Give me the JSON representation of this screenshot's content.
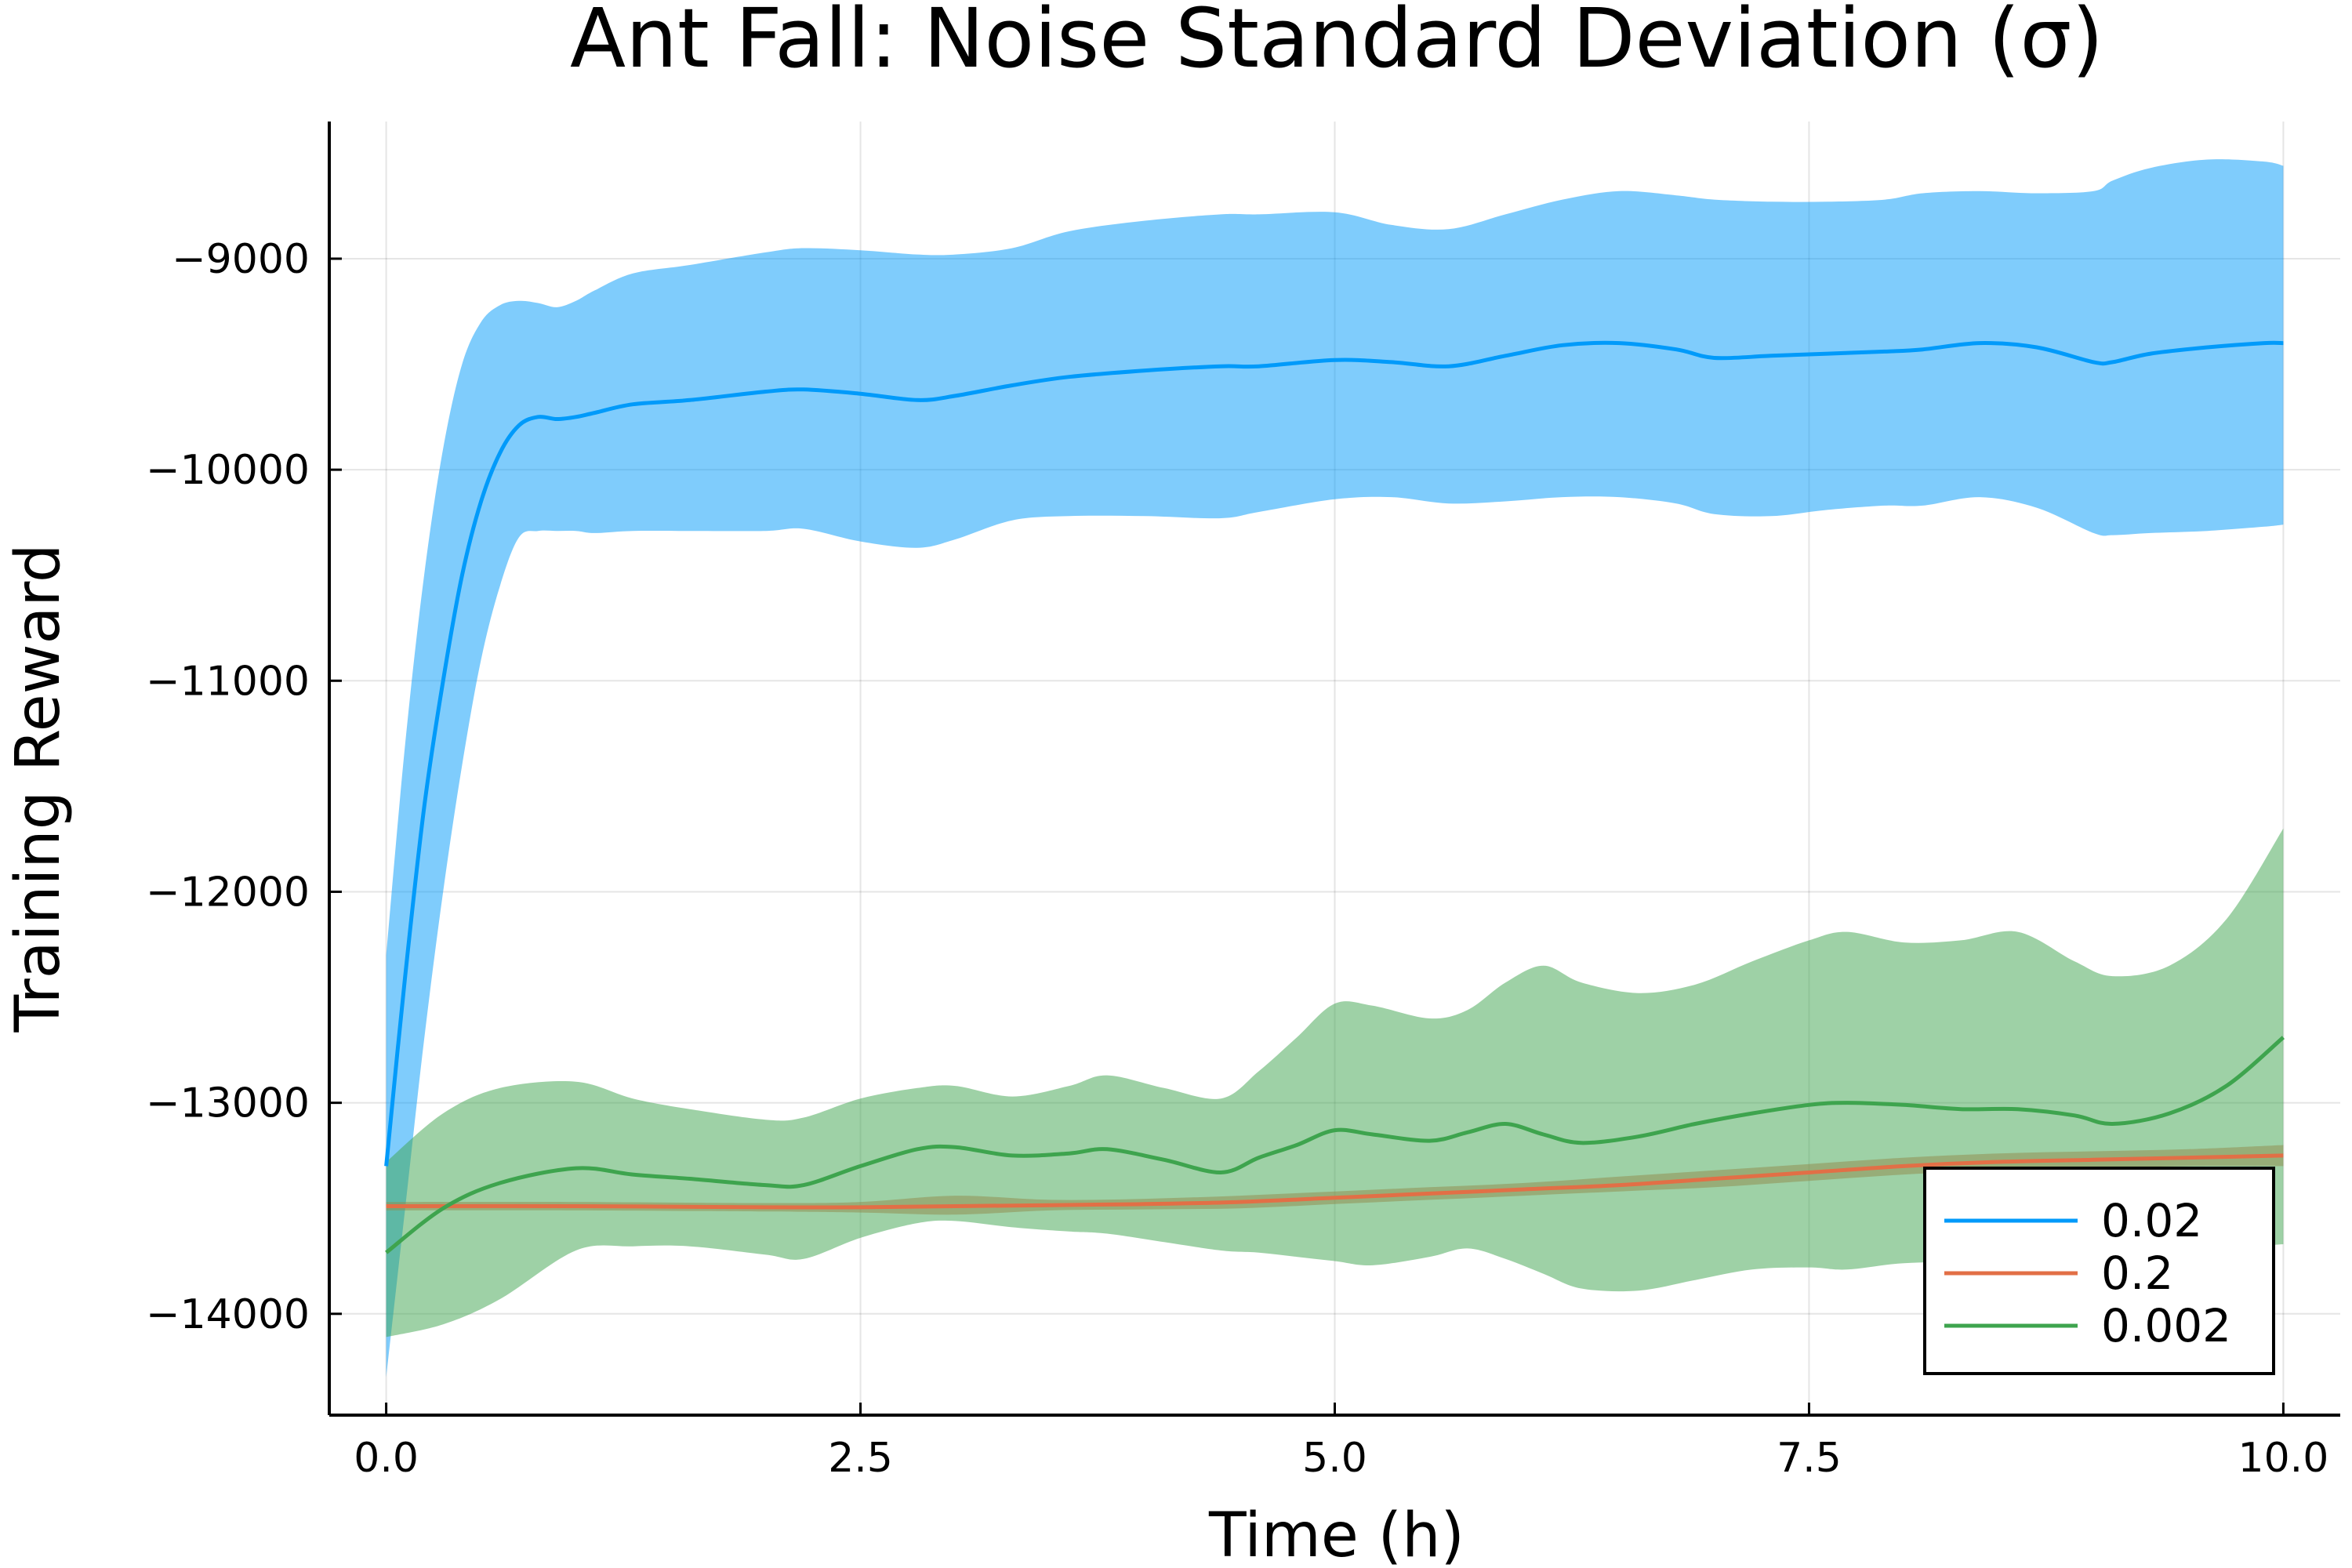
{
  "chart_data": {
    "type": "line",
    "title": "Ant Fall: Noise Standard Deviation (σ)",
    "xlabel": "Time (h)",
    "ylabel": "Training Reward",
    "xlim": [
      -0.3,
      10.3
    ],
    "ylim": [
      -14480,
      -8350
    ],
    "xticks": [
      0.0,
      2.5,
      5.0,
      7.5,
      10.0
    ],
    "xtick_labels": [
      "0.0",
      "2.5",
      "5.0",
      "7.5",
      "10.0"
    ],
    "yticks": [
      -9000,
      -10000,
      -11000,
      -12000,
      -13000,
      -14000
    ],
    "ytick_labels": [
      "−9000",
      "−10000",
      "−11000",
      "−12000",
      "−13000",
      "−14000"
    ],
    "grid": true,
    "legend_position": "bottom-right",
    "series": [
      {
        "name": "0.02",
        "color": "#009AFA",
        "band_color": "#7FC9F9",
        "x": [
          0.0,
          0.1,
          0.2,
          0.3,
          0.4,
          0.5,
          0.6,
          0.7,
          0.8,
          0.9,
          1.0,
          1.1,
          1.3,
          1.6,
          2.0,
          2.2,
          2.5,
          2.8,
          3.0,
          3.3,
          3.6,
          4.0,
          4.4,
          4.6,
          5.0,
          5.3,
          5.6,
          5.9,
          6.2,
          6.5,
          6.8,
          7.0,
          7.3,
          7.6,
          7.9,
          8.1,
          8.4,
          8.7,
          9.0,
          9.1,
          9.3,
          9.6,
          9.9,
          10.0
        ],
        "values": [
          -13300,
          -12400,
          -11600,
          -11000,
          -10500,
          -10150,
          -9920,
          -9790,
          -9750,
          -9760,
          -9750,
          -9730,
          -9690,
          -9670,
          -9630,
          -9620,
          -9640,
          -9670,
          -9650,
          -9600,
          -9560,
          -9530,
          -9510,
          -9510,
          -9480,
          -9490,
          -9510,
          -9460,
          -9410,
          -9400,
          -9430,
          -9470,
          -9460,
          -9450,
          -9440,
          -9430,
          -9400,
          -9420,
          -9490,
          -9490,
          -9450,
          -9420,
          -9400,
          -9400
        ],
        "upper": [
          -12300,
          -11300,
          -10500,
          -9900,
          -9500,
          -9300,
          -9220,
          -9200,
          -9210,
          -9230,
          -9200,
          -9150,
          -9070,
          -9030,
          -8970,
          -8950,
          -8960,
          -8980,
          -8980,
          -8950,
          -8870,
          -8820,
          -8790,
          -8790,
          -8780,
          -8840,
          -8860,
          -8790,
          -8720,
          -8680,
          -8700,
          -8720,
          -8730,
          -8730,
          -8720,
          -8690,
          -8680,
          -8690,
          -8680,
          -8630,
          -8570,
          -8530,
          -8540,
          -8560
        ],
        "lower": [
          -14300,
          -13500,
          -12700,
          -12000,
          -11400,
          -10900,
          -10550,
          -10320,
          -10290,
          -10290,
          -10290,
          -10300,
          -10290,
          -10290,
          -10290,
          -10280,
          -10340,
          -10370,
          -10330,
          -10240,
          -10220,
          -10220,
          -10230,
          -10200,
          -10140,
          -10130,
          -10160,
          -10150,
          -10130,
          -10130,
          -10160,
          -10210,
          -10220,
          -10190,
          -10170,
          -10170,
          -10130,
          -10180,
          -10300,
          -10310,
          -10300,
          -10290,
          -10270,
          -10260
        ]
      },
      {
        "name": "0.2",
        "color": "#E26F46",
        "band_color": "#F0B7A2",
        "x": [
          0.0,
          1.0,
          2.0,
          2.5,
          3.0,
          3.5,
          4.0,
          4.5,
          5.0,
          5.5,
          6.0,
          6.5,
          7.0,
          7.5,
          8.0,
          8.5,
          9.0,
          9.5,
          10.0
        ],
        "values": [
          -13490,
          -13490,
          -13495,
          -13495,
          -13490,
          -13485,
          -13480,
          -13470,
          -13450,
          -13430,
          -13410,
          -13390,
          -13360,
          -13330,
          -13300,
          -13280,
          -13270,
          -13260,
          -13250
        ],
        "upper": [
          -13470,
          -13470,
          -13475,
          -13470,
          -13440,
          -13460,
          -13455,
          -13440,
          -13420,
          -13400,
          -13380,
          -13350,
          -13320,
          -13290,
          -13260,
          -13240,
          -13230,
          -13220,
          -13200
        ],
        "lower": [
          -13510,
          -13510,
          -13515,
          -13520,
          -13530,
          -13510,
          -13505,
          -13500,
          -13480,
          -13460,
          -13440,
          -13420,
          -13400,
          -13370,
          -13340,
          -13320,
          -13310,
          -13300,
          -13300
        ]
      },
      {
        "name": "0.002",
        "color": "#3EA44E",
        "band_color": "#9ED1A6",
        "x": [
          0.0,
          0.3,
          0.6,
          1.0,
          1.3,
          1.6,
          2.0,
          2.2,
          2.5,
          2.8,
          3.0,
          3.3,
          3.6,
          3.8,
          4.1,
          4.4,
          4.6,
          4.8,
          5.0,
          5.2,
          5.5,
          5.7,
          5.9,
          6.1,
          6.3,
          6.6,
          6.9,
          7.2,
          7.5,
          7.7,
          8.0,
          8.3,
          8.6,
          8.9,
          9.1,
          9.4,
          9.7,
          10.0
        ],
        "values": [
          -13710,
          -13500,
          -13380,
          -13310,
          -13340,
          -13360,
          -13390,
          -13390,
          -13300,
          -13220,
          -13210,
          -13250,
          -13240,
          -13220,
          -13270,
          -13330,
          -13260,
          -13200,
          -13130,
          -13150,
          -13180,
          -13140,
          -13100,
          -13150,
          -13190,
          -13160,
          -13100,
          -13050,
          -13010,
          -13000,
          -13010,
          -13030,
          -13030,
          -13060,
          -13100,
          -13050,
          -12920,
          -12690
        ],
        "upper": [
          -13280,
          -13050,
          -12930,
          -12900,
          -12980,
          -13030,
          -13080,
          -13070,
          -12980,
          -12930,
          -12920,
          -12970,
          -12920,
          -12870,
          -12930,
          -12980,
          -12850,
          -12690,
          -12530,
          -12540,
          -12600,
          -12560,
          -12430,
          -12350,
          -12430,
          -12480,
          -12440,
          -12330,
          -12230,
          -12190,
          -12240,
          -12230,
          -12190,
          -12330,
          -12400,
          -12350,
          -12130,
          -11700
        ],
        "lower": [
          -14110,
          -14050,
          -13930,
          -13700,
          -13680,
          -13680,
          -13720,
          -13740,
          -13640,
          -13570,
          -13560,
          -13590,
          -13610,
          -13620,
          -13660,
          -13700,
          -13710,
          -13730,
          -13750,
          -13770,
          -13730,
          -13690,
          -13740,
          -13810,
          -13880,
          -13890,
          -13840,
          -13790,
          -13780,
          -13790,
          -13760,
          -13760,
          -13800,
          -13810,
          -13770,
          -13730,
          -13690,
          -13670
        ]
      }
    ]
  }
}
